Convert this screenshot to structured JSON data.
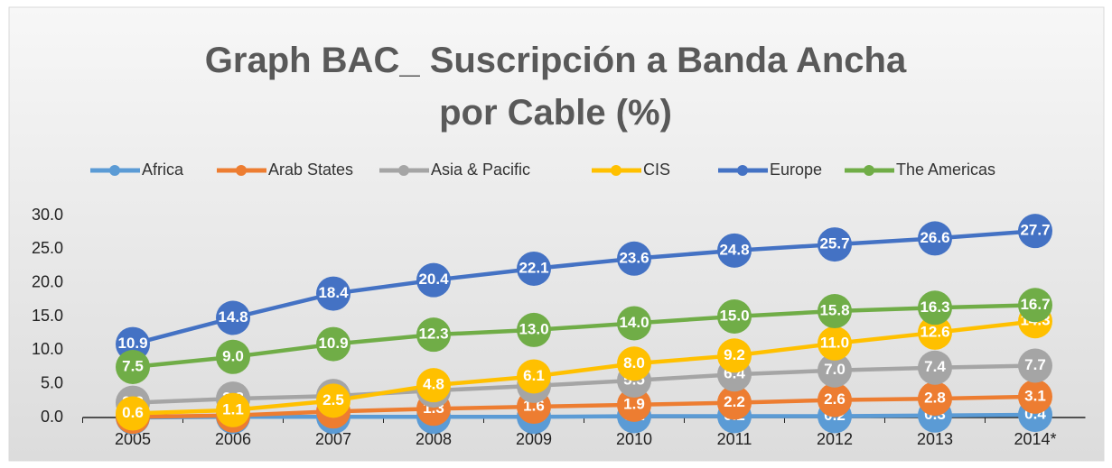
{
  "chart_data": {
    "type": "line",
    "title": "Graph BAC_ Suscripción a Banda Ancha por Cable (%)",
    "categories": [
      "2005",
      "2006",
      "2007",
      "2008",
      "2009",
      "2010",
      "2011",
      "2012",
      "2013",
      "2014*"
    ],
    "ylim": [
      0,
      30
    ],
    "yticks": [
      {
        "value": 0,
        "label": "0.0"
      },
      {
        "value": 5,
        "label": "5.0"
      },
      {
        "value": 10,
        "label": "10.0"
      },
      {
        "value": 15,
        "label": "15.0"
      },
      {
        "value": 20,
        "label": "20.0"
      },
      {
        "value": 25,
        "label": "25.0"
      },
      {
        "value": 30,
        "label": "30.0"
      }
    ],
    "grid": false,
    "legend": "top",
    "series": [
      {
        "name": "Africa",
        "color": "#5b9bd5",
        "values": [
          0,
          0.1,
          0.1,
          0.1,
          0.1,
          0.2,
          0.2,
          0.2,
          0.3,
          0.4
        ],
        "value_labels": [
          "0.0",
          "0.1",
          "0.1",
          "0.1",
          "0.1",
          "0.2",
          "0.2",
          "0.2",
          "0.3",
          "0.4"
        ]
      },
      {
        "name": "Arab States",
        "color": "#ed7d31",
        "values": [
          0.1,
          0.3,
          0.9,
          1.3,
          1.6,
          1.9,
          2.2,
          2.6,
          2.8,
          3.1
        ],
        "value_labels": [
          "0.1",
          "0.3",
          "0.9",
          "1.3",
          "1.6",
          "1.9",
          "2.2",
          "2.6",
          "2.8",
          "3.1"
        ]
      },
      {
        "name": "Asia & Pacific",
        "color": "#a5a5a5",
        "values": [
          2.2,
          2.8,
          3.2,
          4,
          4.7,
          5.5,
          6.4,
          7,
          7.4,
          7.7
        ],
        "value_labels": [
          "2.2",
          "2.8",
          "3.2",
          "4.0",
          "4.7",
          "5.5",
          "6.4",
          "7.0",
          "7.4",
          "7.7"
        ]
      },
      {
        "name": "CIS",
        "color": "#ffc000",
        "values": [
          0.6,
          1.1,
          2.5,
          4.8,
          6.1,
          8,
          9.2,
          11,
          12.6,
          14.3
        ],
        "value_labels": [
          "0.6",
          "1.1",
          "2.5",
          "4.8",
          "6.1",
          "8.0",
          "9.2",
          "11.0",
          "12.6",
          "14.3"
        ]
      },
      {
        "name": "Europe",
        "color": "#4472c4",
        "values": [
          10.9,
          14.8,
          18.4,
          20.4,
          22.1,
          23.6,
          24.8,
          25.7,
          26.6,
          27.7
        ],
        "value_labels": [
          "10.9",
          "14.8",
          "18.4",
          "20.4",
          "22.1",
          "23.6",
          "24.8",
          "25.7",
          "26.6",
          "27.7"
        ]
      },
      {
        "name": "The Americas",
        "color": "#70ad47",
        "values": [
          7.5,
          9,
          10.9,
          12.3,
          13,
          14,
          15,
          15.8,
          16.3,
          16.7
        ],
        "value_labels": [
          "7.5",
          "9.0",
          "10.9",
          "12.3",
          "13.0",
          "14.0",
          "15.0",
          "15.8",
          "16.3",
          "16.7"
        ]
      }
    ]
  }
}
